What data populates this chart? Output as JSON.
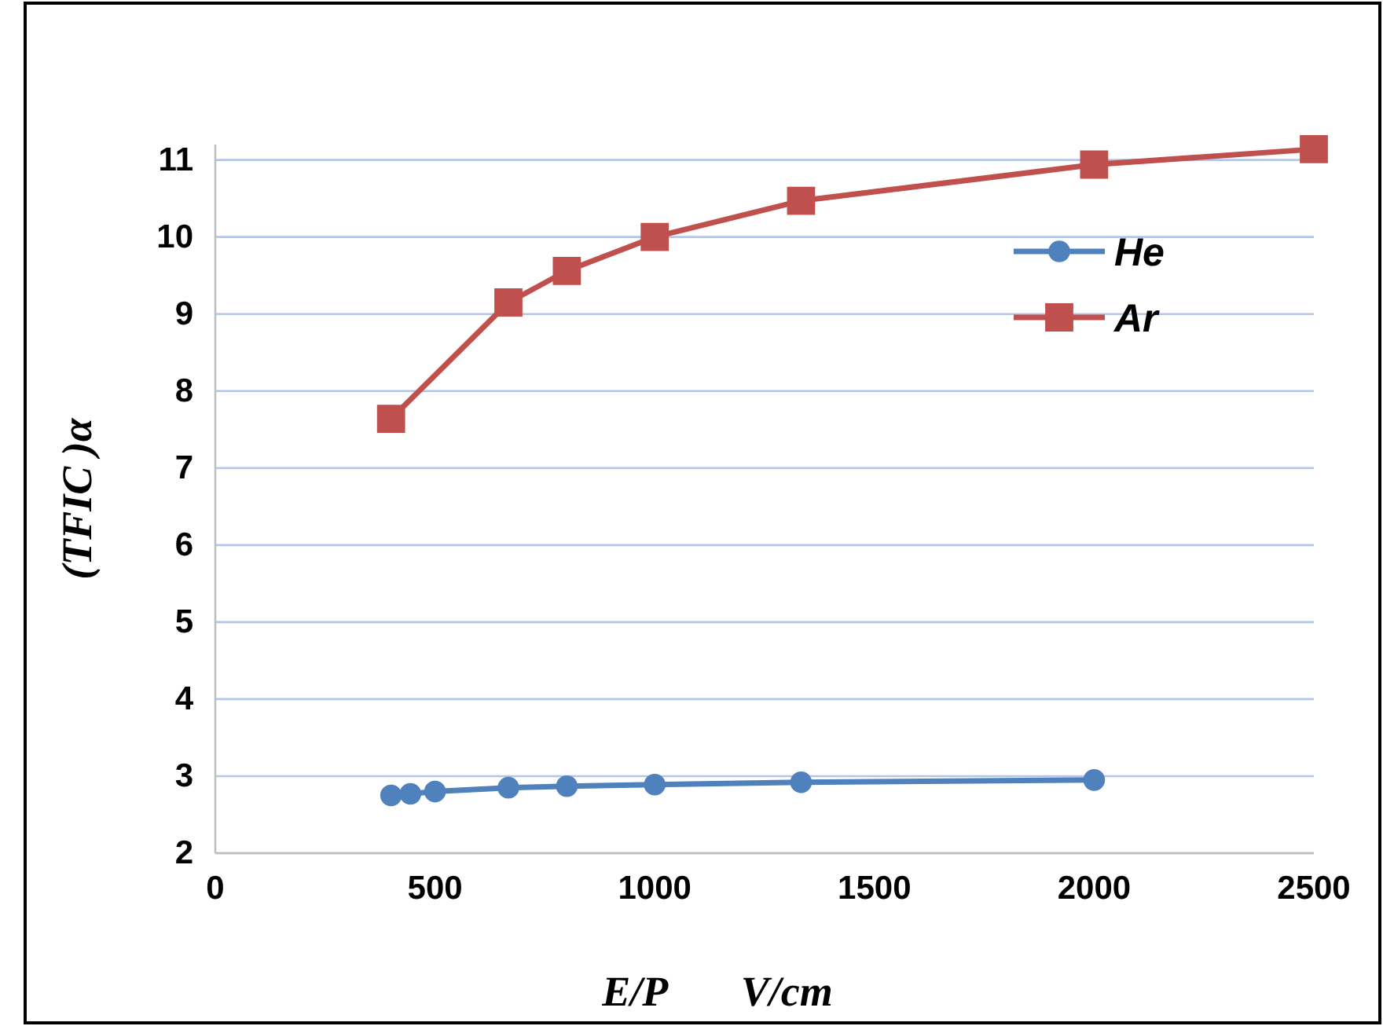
{
  "chart_data": {
    "type": "line",
    "xlabel": "E/P       V/cm",
    "ylabel": "(TFIC )α",
    "xlim": [
      0,
      2500
    ],
    "xticks": [
      0,
      500,
      1000,
      1500,
      2000,
      2500
    ],
    "ylim": [
      2,
      11.2
    ],
    "yticks": [
      2,
      3,
      4,
      5,
      6,
      7,
      8,
      9,
      10,
      11
    ],
    "grid": "y",
    "legend": "top right",
    "line_style": "solid",
    "series": [
      {
        "name": "He",
        "color": "#4f81bd",
        "marker": "circle",
        "x": [
          400,
          444,
          500,
          667,
          800,
          1000,
          1333,
          2000
        ],
        "values": [
          2.75,
          2.77,
          2.8,
          2.85,
          2.87,
          2.89,
          2.92,
          2.95
        ]
      },
      {
        "name": "Ar",
        "color": "#c0504d",
        "marker": "square",
        "x": [
          400,
          667,
          800,
          1000,
          1333,
          2000,
          2500
        ],
        "values": [
          7.64,
          9.15,
          9.56,
          10.0,
          10.47,
          10.94,
          11.14
        ]
      }
    ]
  }
}
